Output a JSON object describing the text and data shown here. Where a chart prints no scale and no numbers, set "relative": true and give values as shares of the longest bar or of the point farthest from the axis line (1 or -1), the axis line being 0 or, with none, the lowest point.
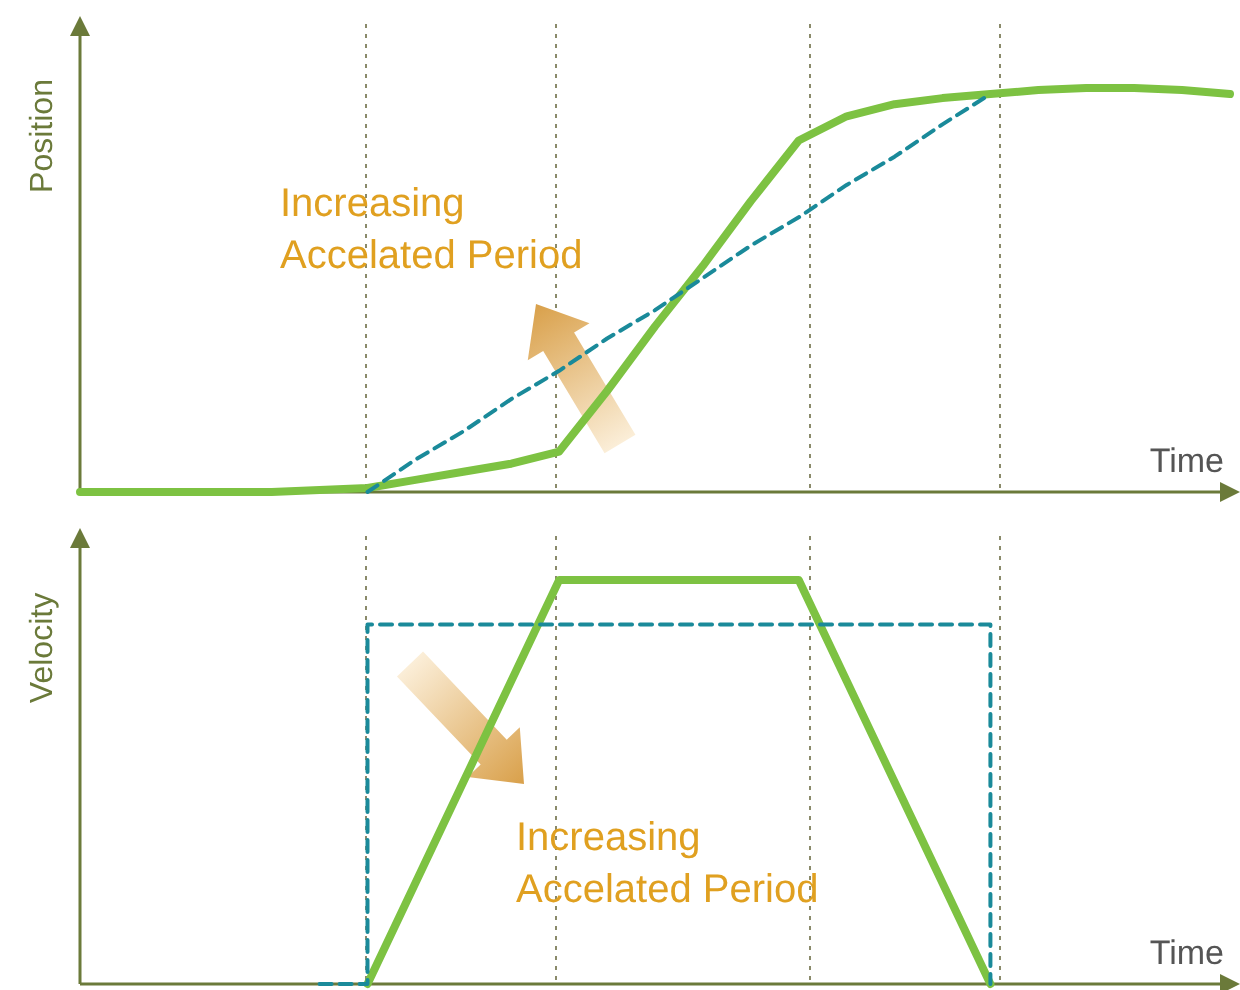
{
  "chart_data": [
    {
      "type": "line",
      "relative": true,
      "xlabel": "Time",
      "ylabel": "Position",
      "categories": [
        null,
        null,
        null,
        null,
        null,
        null,
        null,
        null,
        null,
        null,
        null,
        null,
        null,
        null,
        null,
        null,
        null,
        null,
        null,
        null,
        null,
        null,
        null,
        null,
        null
      ],
      "series": [
        {
          "color": "#7dc242",
          "line_style": "solid",
          "values": [
            0,
            0,
            0,
            0,
            0,
            0.005,
            0.01,
            0.03,
            0.05,
            0.07,
            0.1,
            0.25,
            0.41,
            0.56,
            0.72,
            0.87,
            0.93,
            0.96,
            0.975,
            0.985,
            0.995,
            1,
            1,
            0.995,
            0.985
          ]
        },
        {
          "color": "#1a8a9a",
          "line_style": "dashed",
          "values": [
            null,
            null,
            null,
            null,
            null,
            null,
            0,
            0.08,
            0.15,
            0.23,
            0.3,
            0.38,
            0.45,
            0.53,
            0.61,
            0.68,
            0.76,
            0.83,
            0.91,
            0.985,
            null,
            null,
            null,
            null,
            null
          ]
        }
      ],
      "annotations": [
        "Increasing Accelated Period"
      ]
    },
    {
      "type": "line",
      "relative": true,
      "xlabel": "Time",
      "ylabel": "Velocity",
      "categories": [
        null,
        null,
        null,
        null,
        null,
        null,
        null,
        null,
        null,
        null,
        null,
        null,
        null,
        null,
        null,
        null,
        null,
        null,
        null,
        null,
        null,
        null,
        null,
        null,
        null
      ],
      "series": [
        {
          "color": "#7dc242",
          "line_style": "solid",
          "values": [
            null,
            null,
            null,
            null,
            null,
            null,
            0,
            0.25,
            0.5,
            0.75,
            1,
            1,
            1,
            1,
            1,
            1,
            0.75,
            0.5,
            0.25,
            0,
            null,
            null,
            null,
            null,
            null
          ]
        },
        {
          "type": "step",
          "color": "#1a8a9a",
          "line_style": "dashed",
          "values": [
            null,
            null,
            null,
            null,
            null,
            0,
            0.89,
            0.89,
            0.89,
            0.89,
            0.89,
            0.89,
            0.89,
            0.89,
            0.89,
            0.89,
            0.89,
            0.89,
            0.89,
            0,
            null,
            null,
            null,
            null,
            null
          ]
        }
      ],
      "annotations": [
        "Increasing Accelated Period"
      ]
    }
  ]
}
